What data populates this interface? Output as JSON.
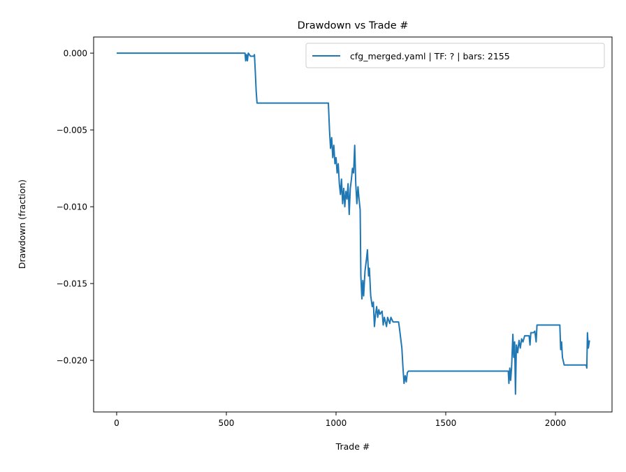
{
  "chart_data": {
    "type": "line",
    "title": "Drawdown vs Trade #",
    "xlabel": "Trade #",
    "ylabel": "Drawdown (fraction)",
    "xlim": [
      -105,
      2258
    ],
    "ylim": [
      -0.02336,
      0.00105
    ],
    "xticks": [
      0,
      500,
      1000,
      1500,
      2000
    ],
    "xtick_labels": [
      "0",
      "500",
      "1000",
      "1500",
      "2000"
    ],
    "yticks": [
      0.0,
      -0.005,
      -0.01,
      -0.015,
      -0.02
    ],
    "ytick_labels": [
      "0.000",
      "−0.005",
      "−0.010",
      "−0.015",
      "−0.020"
    ],
    "grid": false,
    "legend_placement": "upper right",
    "series": [
      {
        "name": "cfg_merged.yaml | TF: ? | bars: 2155",
        "color": "#1f77b4",
        "points": [
          [
            0,
            0
          ],
          [
            585,
            0
          ],
          [
            588,
            -0.0005
          ],
          [
            592,
            -0.0001
          ],
          [
            596,
            -0.0005
          ],
          [
            600,
            0
          ],
          [
            610,
            -0.0002
          ],
          [
            625,
            -0.0002
          ],
          [
            628,
            -0.0001
          ],
          [
            632,
            -0.0012
          ],
          [
            636,
            -0.0025
          ],
          [
            640,
            -0.00325
          ],
          [
            965,
            -0.00325
          ],
          [
            970,
            -0.005
          ],
          [
            975,
            -0.0062
          ],
          [
            980,
            -0.0055
          ],
          [
            985,
            -0.0068
          ],
          [
            990,
            -0.006
          ],
          [
            995,
            -0.0072
          ],
          [
            1000,
            -0.0068
          ],
          [
            1005,
            -0.0078
          ],
          [
            1010,
            -0.0072
          ],
          [
            1015,
            -0.0085
          ],
          [
            1020,
            -0.0092
          ],
          [
            1025,
            -0.0082
          ],
          [
            1030,
            -0.0098
          ],
          [
            1035,
            -0.0088
          ],
          [
            1040,
            -0.01
          ],
          [
            1045,
            -0.009
          ],
          [
            1050,
            -0.0095
          ],
          [
            1055,
            -0.0085
          ],
          [
            1060,
            -0.0105
          ],
          [
            1065,
            -0.0088
          ],
          [
            1070,
            -0.0082
          ],
          [
            1075,
            -0.0075
          ],
          [
            1080,
            -0.0078
          ],
          [
            1085,
            -0.006
          ],
          [
            1090,
            -0.0085
          ],
          [
            1095,
            -0.0098
          ],
          [
            1100,
            -0.0087
          ],
          [
            1105,
            -0.0095
          ],
          [
            1110,
            -0.0102
          ],
          [
            1113,
            -0.0145
          ],
          [
            1118,
            -0.016
          ],
          [
            1122,
            -0.0148
          ],
          [
            1126,
            -0.0158
          ],
          [
            1132,
            -0.0142
          ],
          [
            1138,
            -0.0135
          ],
          [
            1143,
            -0.0128
          ],
          [
            1148,
            -0.0145
          ],
          [
            1152,
            -0.014
          ],
          [
            1158,
            -0.0158
          ],
          [
            1165,
            -0.0165
          ],
          [
            1170,
            -0.0162
          ],
          [
            1175,
            -0.0178
          ],
          [
            1180,
            -0.017
          ],
          [
            1185,
            -0.0165
          ],
          [
            1190,
            -0.0172
          ],
          [
            1195,
            -0.0167
          ],
          [
            1200,
            -0.017
          ],
          [
            1210,
            -0.0168
          ],
          [
            1215,
            -0.0177
          ],
          [
            1220,
            -0.0172
          ],
          [
            1230,
            -0.0178
          ],
          [
            1235,
            -0.0172
          ],
          [
            1245,
            -0.0176
          ],
          [
            1250,
            -0.0172
          ],
          [
            1260,
            -0.0175
          ],
          [
            1285,
            -0.0175
          ],
          [
            1290,
            -0.018
          ],
          [
            1300,
            -0.0192
          ],
          [
            1305,
            -0.0205
          ],
          [
            1310,
            -0.0215
          ],
          [
            1315,
            -0.021
          ],
          [
            1320,
            -0.0214
          ],
          [
            1325,
            -0.0208
          ],
          [
            1330,
            -0.0207
          ],
          [
            1785,
            -0.0207
          ],
          [
            1788,
            -0.0215
          ],
          [
            1792,
            -0.0205
          ],
          [
            1796,
            -0.0213
          ],
          [
            1800,
            -0.0205
          ],
          [
            1806,
            -0.0183
          ],
          [
            1810,
            -0.0198
          ],
          [
            1814,
            -0.0188
          ],
          [
            1818,
            -0.0222
          ],
          [
            1822,
            -0.019
          ],
          [
            1828,
            -0.0195
          ],
          [
            1834,
            -0.0187
          ],
          [
            1840,
            -0.0192
          ],
          [
            1846,
            -0.0186
          ],
          [
            1852,
            -0.0188
          ],
          [
            1860,
            -0.0184
          ],
          [
            1880,
            -0.0184
          ],
          [
            1884,
            -0.019
          ],
          [
            1888,
            -0.0182
          ],
          [
            1900,
            -0.0182
          ],
          [
            1906,
            -0.0181
          ],
          [
            1912,
            -0.0188
          ],
          [
            1916,
            -0.0177
          ],
          [
            2020,
            -0.0177
          ],
          [
            2024,
            -0.0193
          ],
          [
            2028,
            -0.0188
          ],
          [
            2032,
            -0.0198
          ],
          [
            2040,
            -0.0203
          ],
          [
            2140,
            -0.0203
          ],
          [
            2143,
            -0.0205
          ],
          [
            2146,
            -0.0182
          ],
          [
            2150,
            -0.0192
          ],
          [
            2155,
            -0.0187
          ]
        ]
      }
    ]
  }
}
